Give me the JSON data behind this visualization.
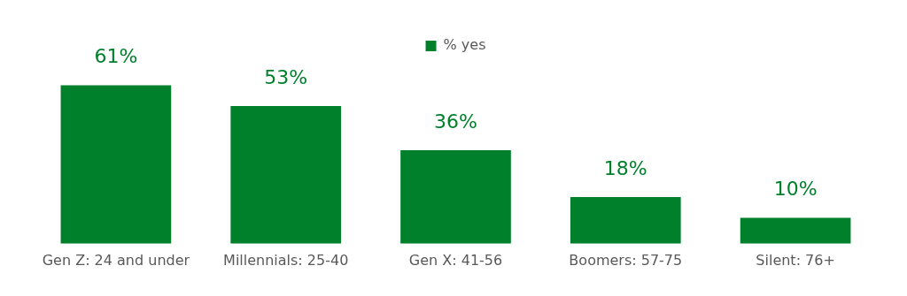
{
  "chart_data": {
    "type": "bar",
    "categories": [
      "Gen Z: 24 and under",
      "Millennials: 25-40",
      "Gen X: 41-56",
      "Boomers: 57-75",
      "Silent: 76+"
    ],
    "series": [
      {
        "name": "% yes",
        "color": "#00802b",
        "values": [
          61,
          53,
          36,
          18,
          10
        ],
        "value_labels": [
          "61%",
          "53%",
          "36%",
          "18%",
          "10%"
        ]
      }
    ],
    "legend": "top",
    "grid": false
  }
}
